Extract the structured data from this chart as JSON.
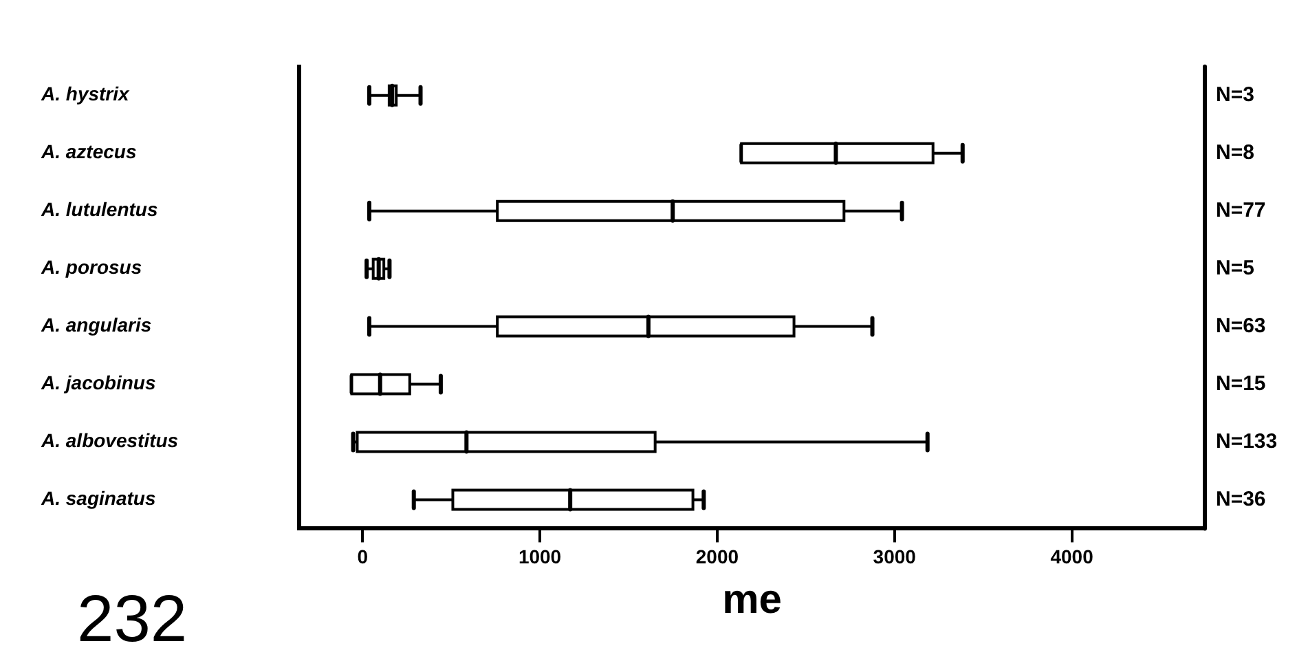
{
  "chart_data": {
    "type": "box",
    "orientation": "horizontal",
    "xlabel": "me",
    "categories": [
      "A. hystrix",
      "A. aztecus",
      "A. lutulentus",
      "A. porosus",
      "A. angularis",
      "A. jacobinus",
      "A. albovestitus",
      "A. saginatus"
    ],
    "boxes": [
      {
        "low": 38,
        "q1": 150,
        "median": 167,
        "q3": 190,
        "high": 327
      },
      {
        "low": 2137,
        "q1": 2137,
        "median": 2669,
        "q3": 3217,
        "high": 3384
      },
      {
        "low": 38,
        "q1": 760,
        "median": 1749,
        "q3": 2715,
        "high": 3042
      },
      {
        "low": 23,
        "q1": 60,
        "median": 91,
        "q3": 120,
        "high": 152
      },
      {
        "low": 38,
        "q1": 760,
        "median": 1612,
        "q3": 2433,
        "high": 2875
      },
      {
        "low": -61,
        "q1": -61,
        "median": 99,
        "q3": 266,
        "high": 441
      },
      {
        "low": -53,
        "q1": -30,
        "median": 586,
        "q3": 1650,
        "high": 3186
      },
      {
        "low": 289,
        "q1": 509,
        "median": 1171,
        "q3": 1863,
        "high": 1924
      }
    ],
    "color": "#ffffff",
    "xlim": [
      -357,
      4750
    ],
    "xticks": [
      0,
      1000,
      2000,
      3000,
      4000
    ],
    "annotations": [
      "N=3",
      "N=8",
      "N=77",
      "N=5",
      "N=63",
      "N=15",
      "N=133",
      "N=36",
      "232"
    ]
  }
}
